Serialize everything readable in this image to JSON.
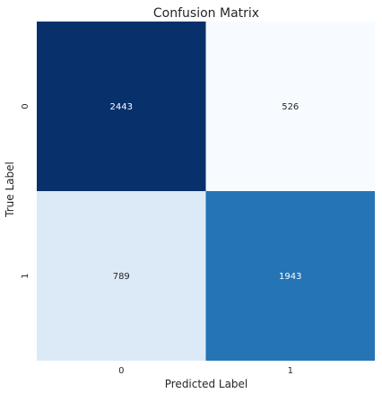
{
  "chart_data": {
    "type": "heatmap",
    "title": "Confusion Matrix",
    "xlabel": "Predicted Label",
    "ylabel": "True Label",
    "x_categories": [
      "0",
      "1"
    ],
    "y_categories": [
      "0",
      "1"
    ],
    "values": [
      [
        2443,
        526
      ],
      [
        789,
        1943
      ]
    ],
    "colormap": "Blues",
    "colorbar": false,
    "grid": false
  }
}
